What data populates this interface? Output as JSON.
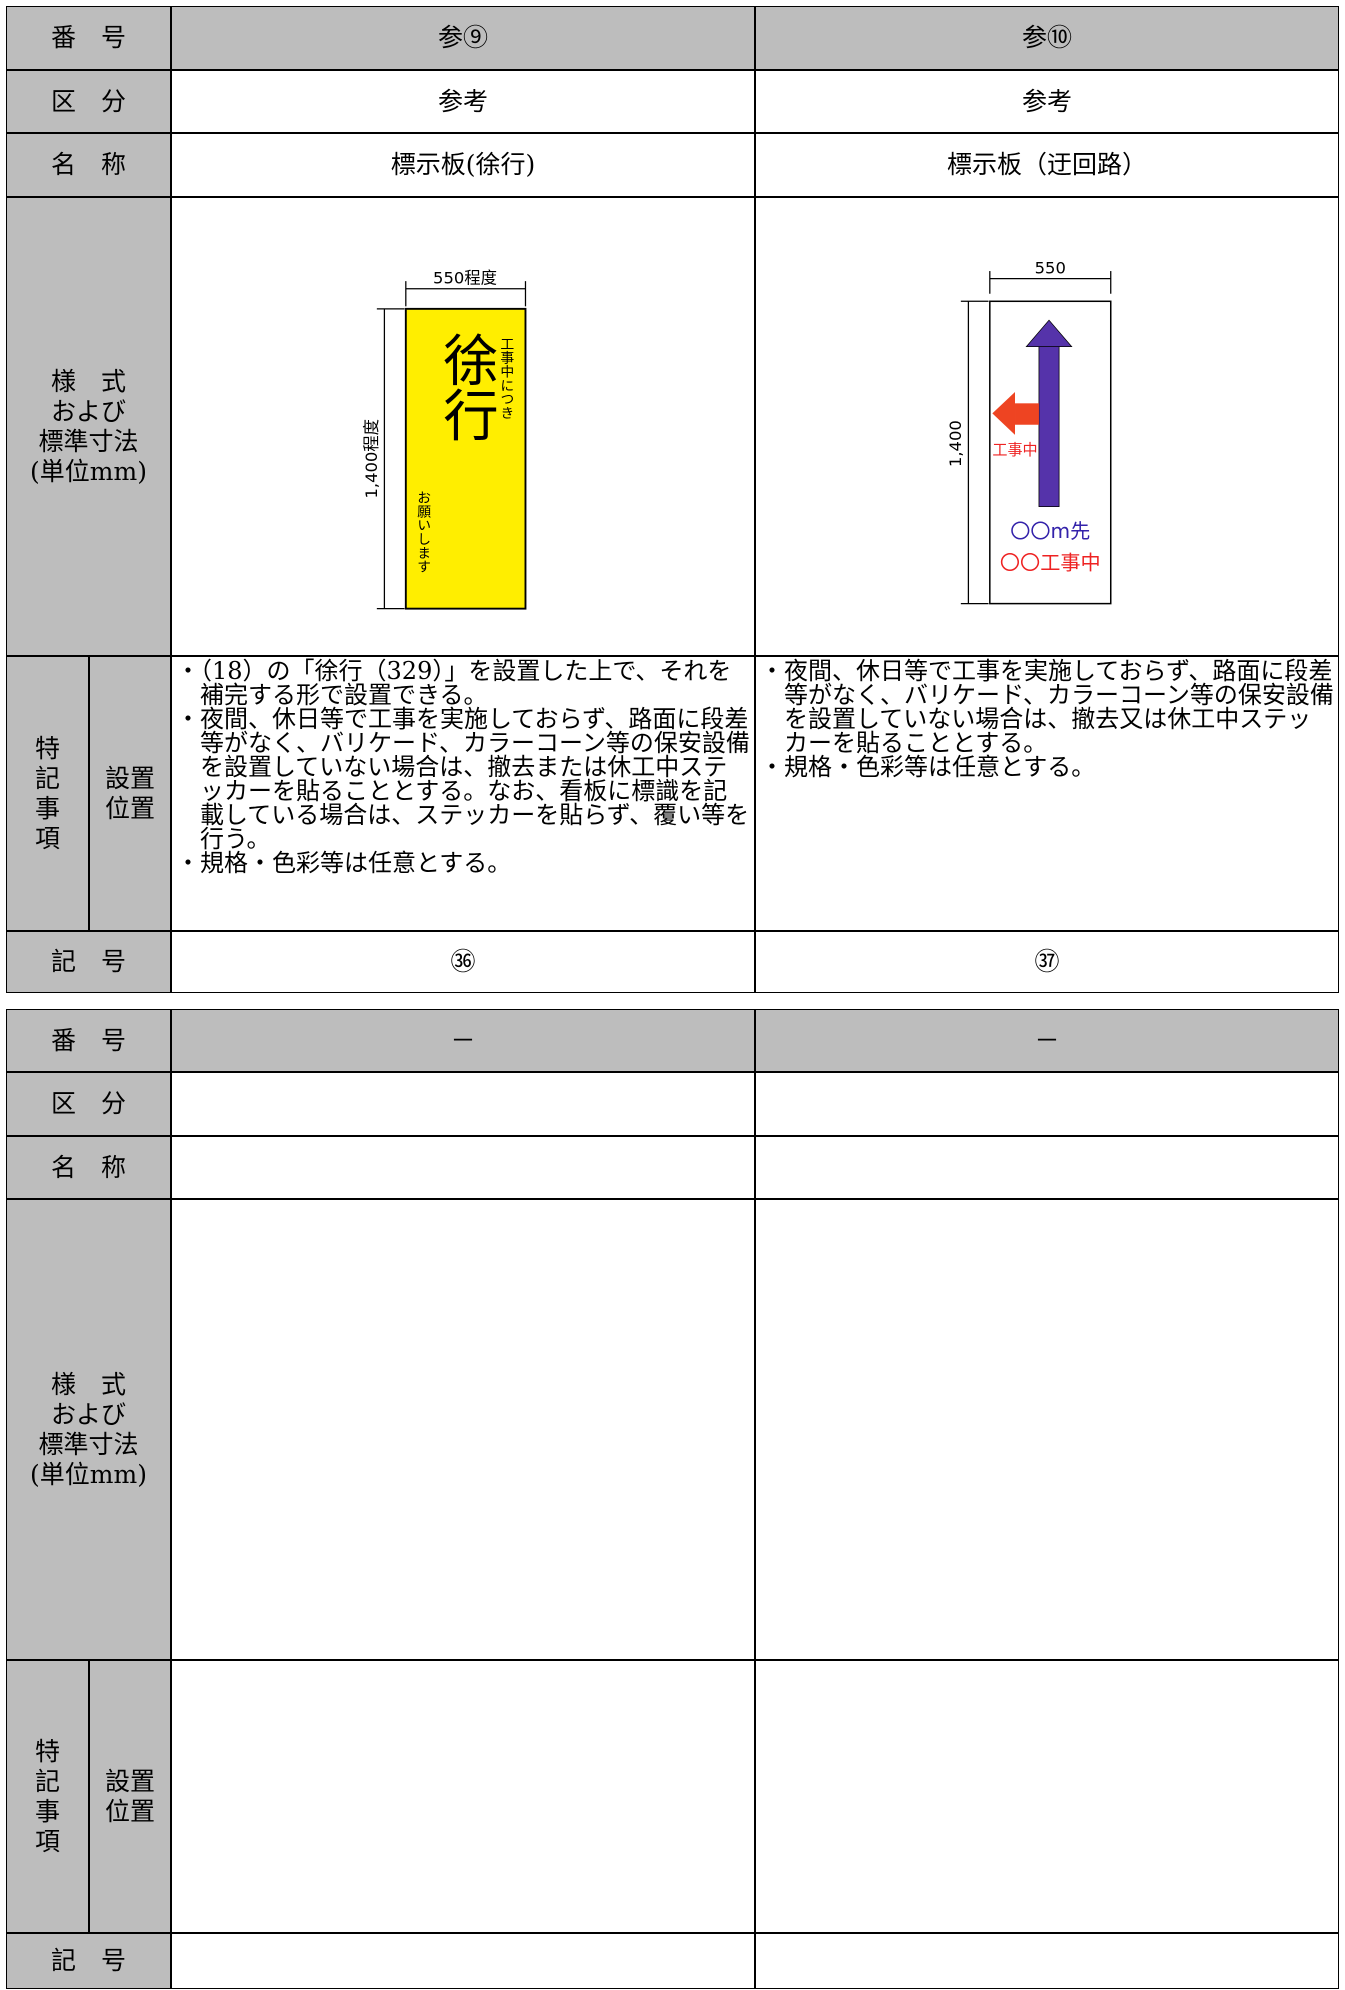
{
  "tables": [
    {
      "row_labels": {
        "number": "番　号",
        "category": "区　分",
        "name": "名　称",
        "format": "様　式\nおよび\n標準寸法\n(単位mm)",
        "notes": "特\n記\n事\n項",
        "notes_sub": "設置\n位置",
        "symbol": "記　号"
      },
      "columns": [
        {
          "number": "参⑨",
          "category": "参考",
          "name": "標示板(徐行)",
          "sign": {
            "width": "550程度",
            "height": "1,400程度",
            "top_text": "工事中につき",
            "main_text": "徐行",
            "bottom_text": "お願いします"
          },
          "notes": [
            "（18）の「徐行（329）」を設置した上で、それを補完する形で設置できる。",
            "夜間、休日等で工事を実施しておらず、路面に段差等がなく、バリケード、カラーコーン等の保安設備を設置していない場合は、撤去または休工中ステッカーを貼ることとする。なお、看板に標識を記載している場合は、ステッカーを貼らず、覆い等を行う。",
            "規格・色彩等は任意とする。"
          ],
          "symbol": "㊱"
        },
        {
          "number": "参⑩",
          "category": "参考",
          "name": "標示板（迂回路）",
          "sign": {
            "width": "550",
            "height": "1,400",
            "arrow_text": "工事中",
            "distance_text": "〇〇m先",
            "work_text": "〇〇工事中"
          },
          "notes": [
            "夜間、休日等で工事を実施しておらず、路面に段差等がなく、バリケード、カラーコーン等の保安設備を設置していない場合は、撤去又は休工中ステッカーを貼ることとする。",
            "規格・色彩等は任意とする。"
          ],
          "symbol": "㊲"
        }
      ]
    },
    {
      "row_labels": {
        "number": "番　号",
        "category": "区　分",
        "name": "名　称",
        "format": "様　式\nおよび\n標準寸法\n(単位mm)",
        "notes": "特\n記\n事\n項",
        "notes_sub": "設置\n位置",
        "symbol": "記　号"
      },
      "columns": [
        {
          "number": "－"
        },
        {
          "number": "－"
        }
      ]
    }
  ]
}
